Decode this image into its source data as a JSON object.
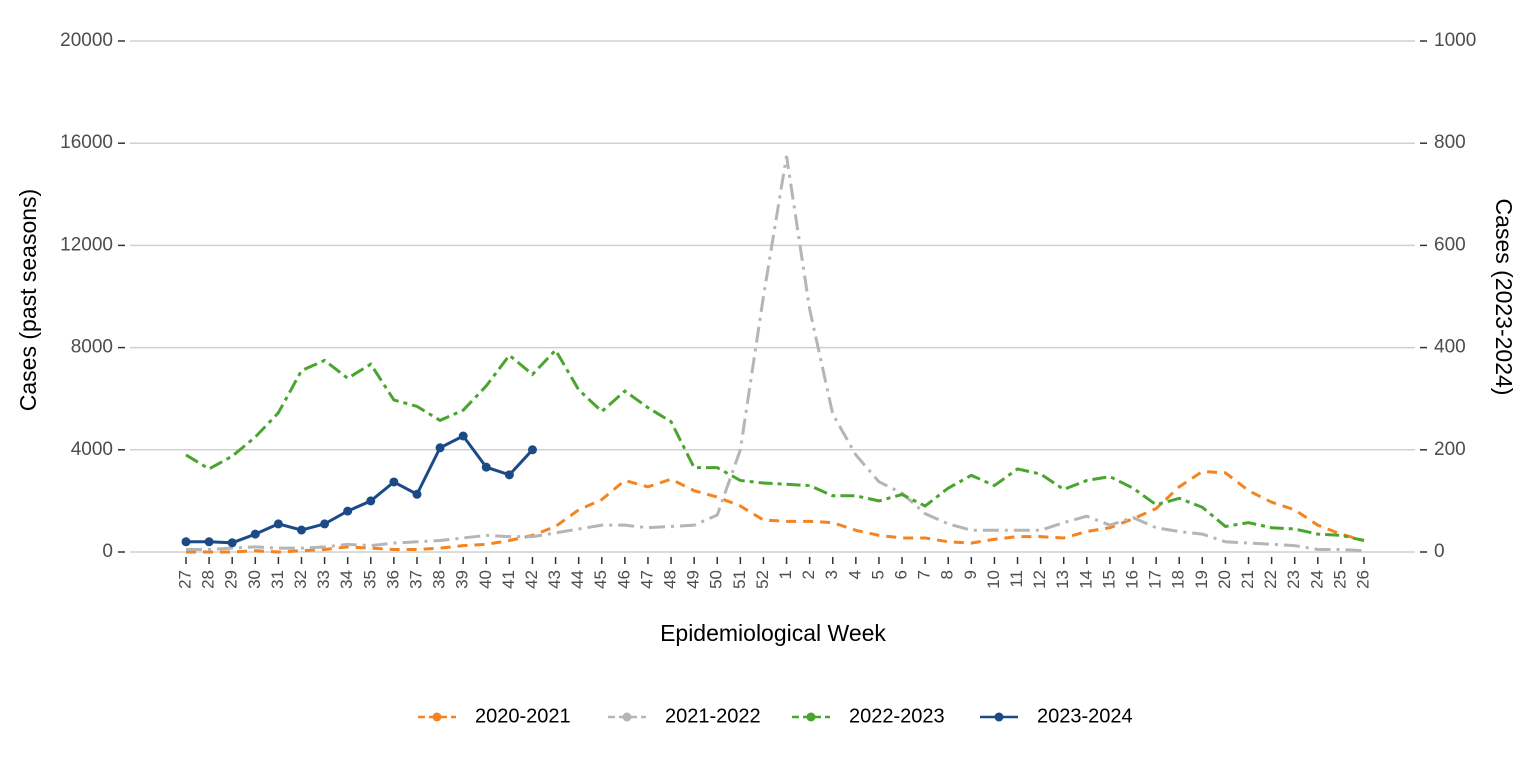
{
  "chart_data": {
    "type": "line",
    "x_label": "Epidemiological Week",
    "y_label": "Cases (past seasons)",
    "y2_label": "Cases (2023-2024)",
    "categories": [
      "27",
      "28",
      "29",
      "30",
      "31",
      "32",
      "33",
      "34",
      "35",
      "36",
      "37",
      "38",
      "39",
      "40",
      "41",
      "42",
      "43",
      "44",
      "45",
      "46",
      "47",
      "48",
      "49",
      "50",
      "51",
      "52",
      "1",
      "2",
      "3",
      "4",
      "5",
      "6",
      "7",
      "8",
      "9",
      "10",
      "11",
      "12",
      "13",
      "14",
      "15",
      "16",
      "17",
      "18",
      "19",
      "20",
      "21",
      "22",
      "23",
      "24",
      "25",
      "26"
    ],
    "ylim": [
      0,
      20000
    ],
    "yticks": [
      0,
      4000,
      8000,
      12000,
      16000,
      20000
    ],
    "y2lim": [
      0,
      1000
    ],
    "y2ticks": [
      0,
      200,
      400,
      600,
      800,
      1000
    ],
    "grid": true,
    "legend": "bottom",
    "series": [
      {
        "name": "2020-2021",
        "color": "#f5831f",
        "dash": "10 7",
        "markers": false,
        "values": [
          0,
          0,
          0,
          50,
          0,
          50,
          100,
          200,
          150,
          100,
          100,
          150,
          250,
          300,
          450,
          650,
          1000,
          1650,
          2050,
          2800,
          2550,
          2850,
          2400,
          2150,
          1800,
          1250,
          1200,
          1200,
          1150,
          850,
          650,
          550,
          550,
          400,
          350,
          500,
          600,
          600,
          550,
          800,
          950,
          1300,
          1700,
          2550,
          3150,
          3100,
          2400,
          1950,
          1650,
          1050,
          700,
          450
        ]
      },
      {
        "name": "2021-2022",
        "color": "#b5b5b5",
        "dash": "16 6 3 6",
        "markers": false,
        "values": [
          100,
          100,
          150,
          200,
          150,
          150,
          200,
          300,
          250,
          350,
          400,
          450,
          550,
          650,
          600,
          600,
          750,
          900,
          1050,
          1050,
          950,
          1000,
          1050,
          1450,
          4000,
          10000,
          15500,
          9500,
          5400,
          3800,
          2750,
          2300,
          1500,
          1100,
          850,
          850,
          850,
          850,
          1150,
          1400,
          1050,
          1350,
          950,
          800,
          700,
          400,
          350,
          300,
          250,
          100,
          100,
          50
        ]
      },
      {
        "name": "2022-2023",
        "color": "#4aa52e",
        "dash": "14 5 4 5",
        "markers": false,
        "values": [
          3800,
          3250,
          3750,
          4500,
          5450,
          7100,
          7500,
          6800,
          7350,
          5950,
          5700,
          5150,
          5550,
          6500,
          7700,
          6950,
          7900,
          6350,
          5500,
          6300,
          5650,
          5100,
          3300,
          3300,
          2800,
          2700,
          2650,
          2600,
          2200,
          2200,
          2000,
          2250,
          1800,
          2500,
          3000,
          2600,
          3250,
          3050,
          2450,
          2800,
          2950,
          2500,
          1850,
          2100,
          1750,
          1000,
          1150,
          950,
          900,
          700,
          650,
          450
        ]
      },
      {
        "name": "2023-2024",
        "color": "#1b4a86",
        "dash": "",
        "markers": true,
        "axis": "y2",
        "values": [
          20,
          20,
          18,
          35,
          55,
          43,
          55,
          80,
          100,
          137,
          113,
          204,
          227,
          166,
          151,
          200,
          null,
          null,
          null,
          null,
          null,
          null,
          null,
          null,
          null,
          null,
          null,
          null,
          null,
          null,
          null,
          null,
          null,
          null,
          null,
          null,
          null,
          null,
          null,
          null,
          null,
          null,
          null,
          null,
          null,
          null,
          null,
          null,
          null,
          null,
          null,
          null
        ]
      }
    ]
  }
}
